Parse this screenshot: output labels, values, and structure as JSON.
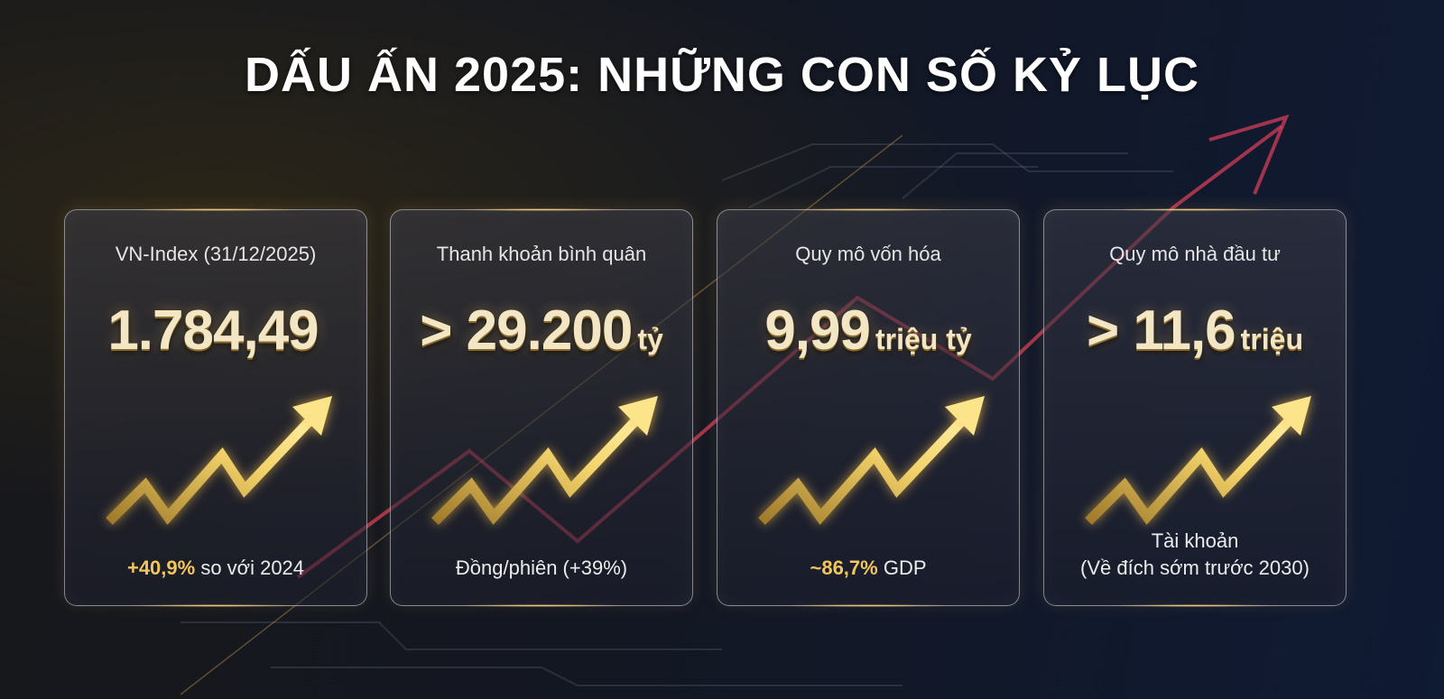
{
  "title": "DẤU ẤN 2025: NHỮNG CON SỐ KỶ LỤC",
  "colors": {
    "accent_gold": "#f1c65c",
    "trend_red": "#e0405a",
    "background": "#131722"
  },
  "cards": [
    {
      "label": "VN-Index (31/12/2025)",
      "value": "1.784,49",
      "unit": "",
      "highlight": "+40,9%",
      "note": " so với 2024",
      "note2": "",
      "icon": "gold-trend-up-arrow-icon"
    },
    {
      "label": "Thanh khoản bình quân",
      "value": "> 29.200",
      "unit": "tỷ",
      "highlight": "",
      "note": "Đồng/phiên (+39%)",
      "note2": "",
      "icon": "gold-trend-up-arrow-icon"
    },
    {
      "label": "Quy mô vốn hóa",
      "value": "9,99",
      "unit": "triệu tỷ",
      "highlight": "~86,7%",
      "note": " GDP",
      "note2": "",
      "icon": "gold-trend-up-arrow-icon"
    },
    {
      "label": "Quy mô nhà đầu tư",
      "value": "> 11,6",
      "unit": "triệu",
      "highlight": "",
      "note": "Tài khoản",
      "note2": "(Về đích sớm trước 2030)",
      "icon": "gold-trend-up-arrow-icon"
    }
  ]
}
